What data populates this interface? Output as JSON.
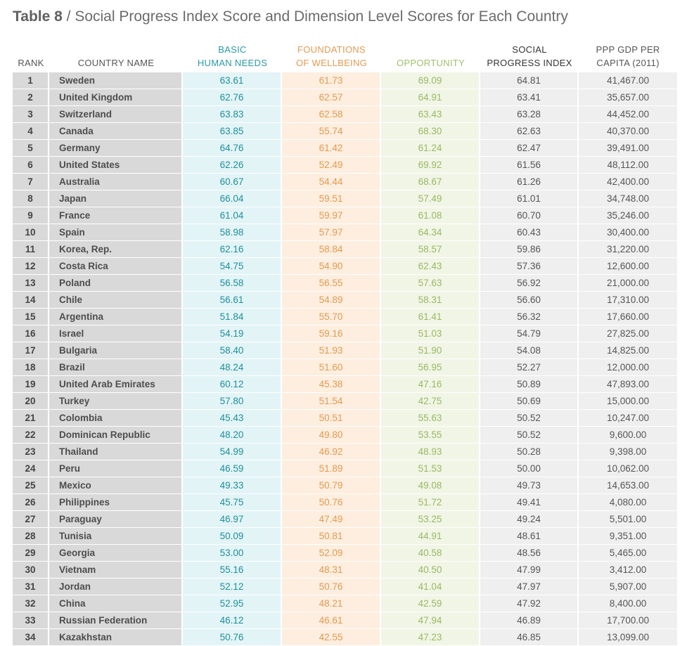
{
  "title": {
    "number": "Table 8",
    "separator": " / ",
    "text": "Social Progress Index Score and Dimension Level Scores for Each Country"
  },
  "columns": {
    "rank": [
      "RANK"
    ],
    "country": [
      "COUNTRY NAME"
    ],
    "basic": [
      "BASIC",
      "HUMAN NEEDS"
    ],
    "found": [
      "FOUNDATIONS",
      "OF WELLBEING"
    ],
    "opp": [
      "OPPORTUNITY"
    ],
    "spi": [
      "SOCIAL",
      "PROGRESS INDEX"
    ],
    "gdp": [
      "PPP GDP PER",
      "CAPITA (2011)"
    ]
  },
  "rows": [
    [
      "1",
      "Sweden",
      "63.61",
      "61.73",
      "69.09",
      "64.81",
      "41,467.00"
    ],
    [
      "2",
      "United Kingdom",
      "62.76",
      "62.57",
      "64.91",
      "63.41",
      "35,657.00"
    ],
    [
      "3",
      "Switzerland",
      "63.83",
      "62.58",
      "63.43",
      "63.28",
      "44,452.00"
    ],
    [
      "4",
      "Canada",
      "63.85",
      "55.74",
      "68.30",
      "62.63",
      "40,370.00"
    ],
    [
      "5",
      "Germany",
      "64.76",
      "61.42",
      "61.24",
      "62.47",
      "39,491.00"
    ],
    [
      "6",
      "United States",
      "62.26",
      "52.49",
      "69.92",
      "61.56",
      "48,112.00"
    ],
    [
      "7",
      "Australia",
      "60.67",
      "54.44",
      "68.67",
      "61.26",
      "42,400.00"
    ],
    [
      "8",
      "Japan",
      "66.04",
      "59.51",
      "57.49",
      "61.01",
      "34,748.00"
    ],
    [
      "9",
      "France",
      "61.04",
      "59.97",
      "61.08",
      "60.70",
      "35,246.00"
    ],
    [
      "10",
      "Spain",
      "58.98",
      "57.97",
      "64.34",
      "60.43",
      "30,400.00"
    ],
    [
      "11",
      "Korea, Rep.",
      "62.16",
      "58.84",
      "58.57",
      "59.86",
      "31,220.00"
    ],
    [
      "12",
      "Costa Rica",
      "54.75",
      "54.90",
      "62.43",
      "57.36",
      "12,600.00"
    ],
    [
      "13",
      "Poland",
      "56.58",
      "56.55",
      "57.63",
      "56.92",
      "21,000.00"
    ],
    [
      "14",
      "Chile",
      "56.61",
      "54.89",
      "58.31",
      "56.60",
      "17,310.00"
    ],
    [
      "15",
      "Argentina",
      "51.84",
      "55.70",
      "61.41",
      "56.32",
      "17,660.00"
    ],
    [
      "16",
      "Israel",
      "54.19",
      "59.16",
      "51.03",
      "54.79",
      "27,825.00"
    ],
    [
      "17",
      "Bulgaria",
      "58.40",
      "51.93",
      "51.90",
      "54.08",
      "14,825.00"
    ],
    [
      "18",
      "Brazil",
      "48.24",
      "51.60",
      "56.95",
      "52.27",
      "12,000.00"
    ],
    [
      "19",
      "United Arab Emirates",
      "60.12",
      "45.38",
      "47.16",
      "50.89",
      "47,893.00"
    ],
    [
      "20",
      "Turkey",
      "57.80",
      "51.54",
      "42.75",
      "50.69",
      "15,000.00"
    ],
    [
      "21",
      "Colombia",
      "45.43",
      "50.51",
      "55.63",
      "50.52",
      "10,247.00"
    ],
    [
      "22",
      "Dominican Republic",
      "48.20",
      "49.80",
      "53.55",
      "50.52",
      "9,600.00"
    ],
    [
      "23",
      "Thailand",
      "54.99",
      "46.92",
      "48.93",
      "50.28",
      "9,398.00"
    ],
    [
      "24",
      "Peru",
      "46.59",
      "51.89",
      "51.53",
      "50.00",
      "10,062.00"
    ],
    [
      "25",
      "Mexico",
      "49.33",
      "50.79",
      "49.08",
      "49.73",
      "14,653.00"
    ],
    [
      "26",
      "Philippines",
      "45.75",
      "50.76",
      "51.72",
      "49.41",
      "4,080.00"
    ],
    [
      "27",
      "Paraguay",
      "46.97",
      "47.49",
      "53.25",
      "49.24",
      "5,501.00"
    ],
    [
      "28",
      "Tunisia",
      "50.09",
      "50.81",
      "44.91",
      "48.61",
      "9,351.00"
    ],
    [
      "29",
      "Georgia",
      "53.00",
      "52.09",
      "40.58",
      "48.56",
      "5,465.00"
    ],
    [
      "30",
      "Vietnam",
      "55.16",
      "48.31",
      "40.50",
      "47.99",
      "3,412.00"
    ],
    [
      "31",
      "Jordan",
      "52.12",
      "50.76",
      "41.04",
      "47.97",
      "5,907.00"
    ],
    [
      "32",
      "China",
      "52.95",
      "48.21",
      "42.59",
      "47.92",
      "8,400.00"
    ],
    [
      "33",
      "Russian Federation",
      "46.12",
      "46.61",
      "47.94",
      "46.89",
      "17,700.00"
    ],
    [
      "34",
      "Kazakhstan",
      "50.76",
      "42.55",
      "47.23",
      "46.85",
      "13,099.00"
    ]
  ]
}
